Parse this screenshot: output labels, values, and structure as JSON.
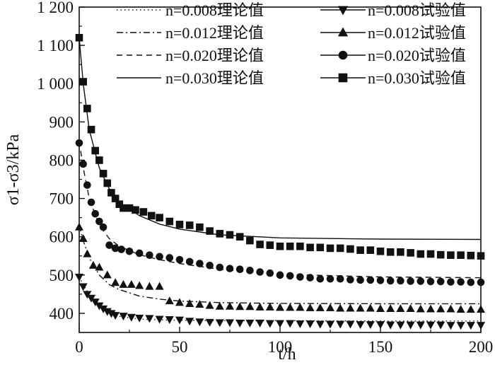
{
  "chart_data": {
    "type": "line",
    "xlabel": "t/h",
    "ylabel": "σ1-σ3/kPa",
    "xlim": [
      0,
      200
    ],
    "ylim": [
      350,
      1200
    ],
    "x_ticks": [
      "0",
      "50",
      "100",
      "150",
      "200"
    ],
    "y_ticks": [
      "400",
      "500",
      "600",
      "700",
      "800",
      "900",
      "1 000",
      "1 100",
      "1 200"
    ],
    "grid": false,
    "legend_placement": "top-right",
    "theory_series": [
      {
        "name": "n=0.008理论值",
        "style": "dotted",
        "x": [
          0,
          2,
          5,
          10,
          15,
          20,
          30,
          40,
          50,
          70,
          100,
          150,
          200
        ],
        "y": [
          495,
          475,
          448,
          420,
          402,
          392,
          385,
          383,
          382,
          381,
          381,
          380,
          380
        ]
      },
      {
        "name": "n=0.012理论值",
        "style": "dashdot",
        "x": [
          0,
          2,
          5,
          10,
          15,
          20,
          30,
          40,
          50,
          70,
          100,
          150,
          200
        ],
        "y": [
          630,
          590,
          545,
          500,
          475,
          462,
          445,
          437,
          432,
          428,
          426,
          425,
          425
        ]
      },
      {
        "name": "n=0.020理论值",
        "style": "dashed",
        "x": [
          0,
          2,
          5,
          10,
          15,
          20,
          30,
          40,
          50,
          70,
          100,
          150,
          200
        ],
        "y": [
          850,
          780,
          700,
          630,
          595,
          575,
          553,
          540,
          530,
          515,
          502,
          495,
          493
        ]
      },
      {
        "name": "n=0.030理论值",
        "style": "solid",
        "x": [
          0,
          2,
          5,
          10,
          15,
          20,
          30,
          40,
          50,
          70,
          100,
          150,
          200
        ],
        "y": [
          1120,
          1000,
          880,
          780,
          725,
          690,
          655,
          633,
          620,
          605,
          597,
          594,
          593
        ]
      }
    ],
    "test_series": [
      {
        "name": "n=0.008试验值",
        "marker": "triangle-down",
        "x": [
          0,
          2,
          4,
          6,
          8,
          10,
          12,
          14,
          16,
          18,
          22,
          26,
          30,
          35,
          40,
          45,
          50,
          55,
          60,
          65,
          70,
          75,
          80,
          85,
          90,
          95,
          100,
          105,
          110,
          115,
          120,
          125,
          130,
          135,
          140,
          145,
          150,
          155,
          160,
          165,
          170,
          175,
          180,
          185,
          190,
          195,
          200
        ],
        "y": [
          495,
          470,
          450,
          440,
          430,
          420,
          412,
          405,
          400,
          395,
          393,
          390,
          388,
          387,
          385,
          384,
          383,
          380,
          378,
          377,
          376,
          376,
          375,
          375,
          375,
          374,
          374,
          374,
          373,
          373,
          372,
          372,
          372,
          372,
          371,
          371,
          371,
          370,
          370,
          370,
          370,
          370,
          370,
          369,
          369,
          369,
          369
        ]
      },
      {
        "name": "n=0.012试验值",
        "marker": "triangle-up",
        "x": [
          0,
          2,
          4,
          7,
          10,
          14,
          18,
          22,
          26,
          30,
          35,
          40,
          45,
          50,
          55,
          60,
          65,
          70,
          75,
          80,
          85,
          90,
          95,
          100,
          105,
          110,
          115,
          120,
          125,
          130,
          135,
          140,
          145,
          150,
          155,
          160,
          165,
          170,
          175,
          180,
          185,
          190,
          195,
          200
        ],
        "y": [
          625,
          595,
          555,
          525,
          520,
          500,
          480,
          475,
          475,
          472,
          470,
          470,
          432,
          428,
          425,
          423,
          420,
          418,
          418,
          417,
          417,
          416,
          416,
          415,
          415,
          415,
          414,
          414,
          414,
          413,
          413,
          413,
          413,
          412,
          412,
          412,
          412,
          411,
          411,
          411,
          411,
          410,
          410,
          410
        ]
      },
      {
        "name": "n=0.020试验值",
        "marker": "circle",
        "x": [
          0,
          2,
          4,
          6,
          8,
          10,
          12,
          15,
          18,
          21,
          25,
          30,
          35,
          40,
          45,
          50,
          55,
          60,
          65,
          70,
          75,
          80,
          85,
          90,
          95,
          100,
          105,
          110,
          115,
          120,
          125,
          130,
          135,
          140,
          145,
          150,
          155,
          160,
          165,
          170,
          175,
          180,
          185,
          190,
          195,
          200
        ],
        "y": [
          845,
          790,
          735,
          690,
          660,
          640,
          625,
          578,
          570,
          567,
          562,
          557,
          552,
          548,
          545,
          540,
          535,
          530,
          525,
          520,
          517,
          515,
          512,
          508,
          505,
          500,
          498,
          495,
          493,
          490,
          490,
          490,
          488,
          487,
          487,
          486,
          485,
          485,
          484,
          484,
          483,
          483,
          482,
          482,
          481,
          481
        ]
      },
      {
        "name": "n=0.030试验值",
        "marker": "square",
        "x": [
          0,
          2,
          4,
          6,
          8,
          10,
          12,
          14,
          16,
          18,
          20,
          22,
          25,
          28,
          32,
          36,
          40,
          45,
          50,
          55,
          60,
          65,
          70,
          75,
          80,
          85,
          90,
          95,
          100,
          105,
          110,
          115,
          120,
          125,
          130,
          135,
          140,
          145,
          150,
          155,
          160,
          165,
          170,
          175,
          180,
          185,
          190,
          195,
          200
        ],
        "y": [
          1120,
          1005,
          935,
          880,
          825,
          800,
          765,
          740,
          715,
          700,
          685,
          675,
          675,
          670,
          665,
          655,
          650,
          640,
          632,
          630,
          625,
          615,
          608,
          605,
          600,
          590,
          580,
          578,
          575,
          575,
          575,
          572,
          572,
          570,
          570,
          568,
          565,
          565,
          562,
          560,
          560,
          558,
          555,
          555,
          553,
          552,
          552,
          551,
          550
        ]
      }
    ]
  }
}
